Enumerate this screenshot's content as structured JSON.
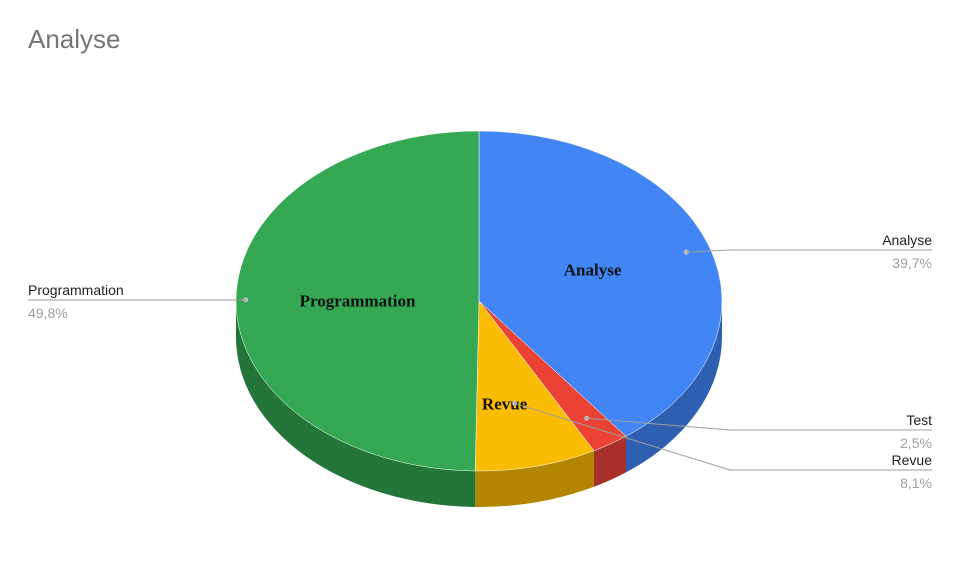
{
  "chart_data": {
    "type": "pie",
    "title": "Analyse",
    "slices": [
      {
        "name": "Analyse",
        "value": 39.7,
        "percent_label": "39,7%",
        "inner_label": "Analyse",
        "color": "#4285F4",
        "side_color": "#2F5FB0"
      },
      {
        "name": "Test",
        "value": 2.5,
        "percent_label": "2,5%",
        "inner_label": "",
        "color": "#EA4335",
        "side_color": "#A8302A"
      },
      {
        "name": "Revue",
        "value": 8.1,
        "percent_label": "8,1%",
        "inner_label": "Revue",
        "color": "#FBBC04",
        "side_color": "#B38600"
      },
      {
        "name": "Programmation",
        "value": 49.8,
        "percent_label": "49,8%",
        "inner_label": "Programmation",
        "color": "#34A853",
        "side_color": "#23753A"
      }
    ],
    "style": "3d",
    "legend": "callout-labels"
  }
}
